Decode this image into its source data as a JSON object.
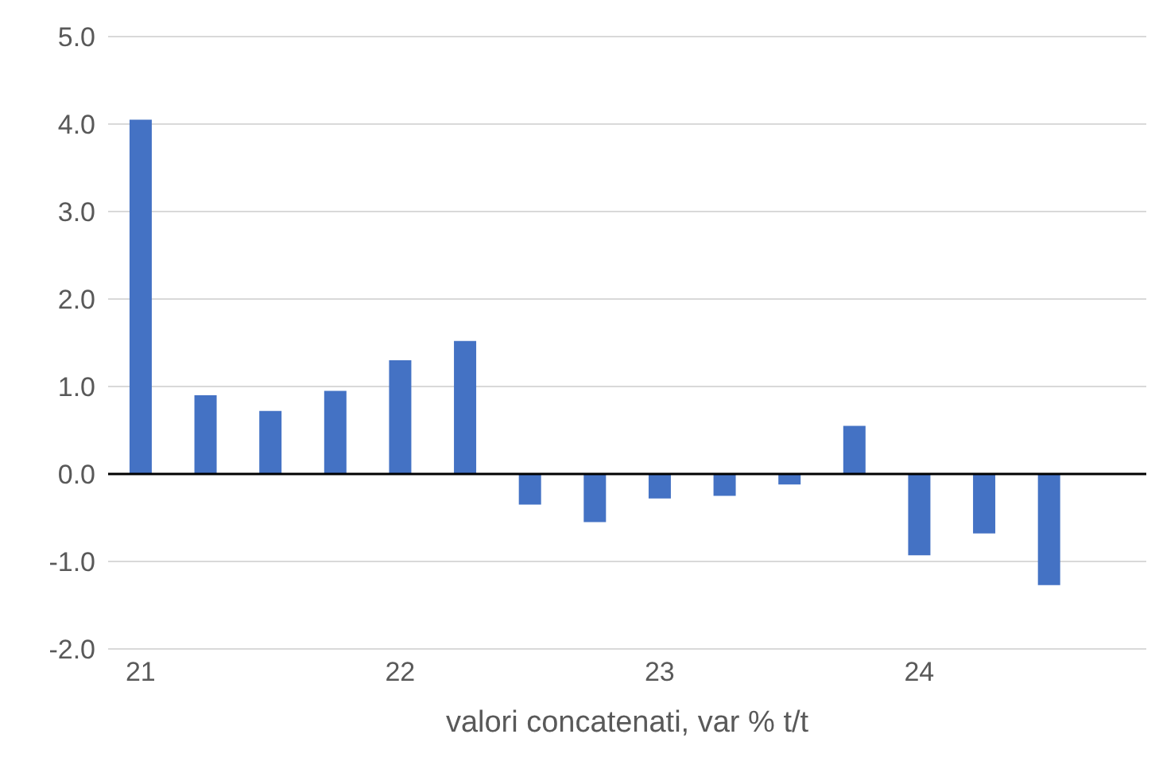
{
  "chart_data": {
    "type": "bar",
    "xlabel": "valori concatenati, var % t/t",
    "categories": [
      "21",
      null,
      null,
      null,
      "22",
      null,
      null,
      null,
      "23",
      null,
      null,
      null,
      "24",
      null,
      null,
      null
    ],
    "values": [
      4.05,
      0.9,
      0.72,
      0.95,
      1.3,
      1.52,
      -0.35,
      -0.55,
      -0.28,
      -0.25,
      -0.12,
      0.55,
      -0.93,
      -0.68,
      -1.27,
      null
    ],
    "color": "#4472c4",
    "ylim": [
      -2,
      5
    ],
    "yticks": [
      {
        "value": -2,
        "label": "-2.0"
      },
      {
        "value": -1,
        "label": "-1.0"
      },
      {
        "value": 0,
        "label": "0.0"
      },
      {
        "value": 1,
        "label": "1.0"
      },
      {
        "value": 2,
        "label": "2.0"
      },
      {
        "value": 3,
        "label": "3.0"
      },
      {
        "value": 4,
        "label": "4.0"
      },
      {
        "value": 5,
        "label": "5.0"
      }
    ],
    "ref_lines": [
      {
        "axis": "y",
        "value": 0,
        "color": "#000000"
      }
    ],
    "grid": "y",
    "legend": false
  }
}
